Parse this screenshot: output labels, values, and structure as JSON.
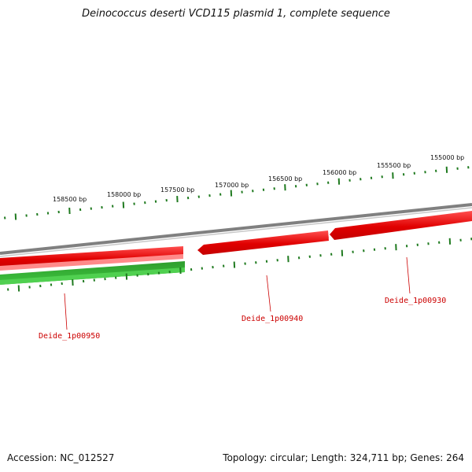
{
  "title": "Deinococcus deserti VCD115 plasmid 1, complete sequence",
  "footer": {
    "accession": "Accession: NC_012527",
    "summary": "Topology: circular; Length: 324,711 bp; Genes: 264"
  },
  "colors": {
    "backbone": "#808080",
    "reverse_strand_gene": "#e60000",
    "forward_strand_gene": "#2eae2e",
    "tick": "#1f7a1f",
    "gene_label": "#cc0000"
  },
  "ruler": {
    "unit": "bp",
    "labels": [
      "158500 bp",
      "158000 bp",
      "157500 bp",
      "157000 bp",
      "156500 bp",
      "156000 bp",
      "155500 bp",
      "155000 bp"
    ]
  },
  "genes": [
    {
      "id": "Deide_1p00950",
      "strand": "forward"
    },
    {
      "id": "Deide_1p00940",
      "strand": "reverse"
    },
    {
      "id": "Deide_1p00930",
      "strand": "reverse"
    }
  ]
}
